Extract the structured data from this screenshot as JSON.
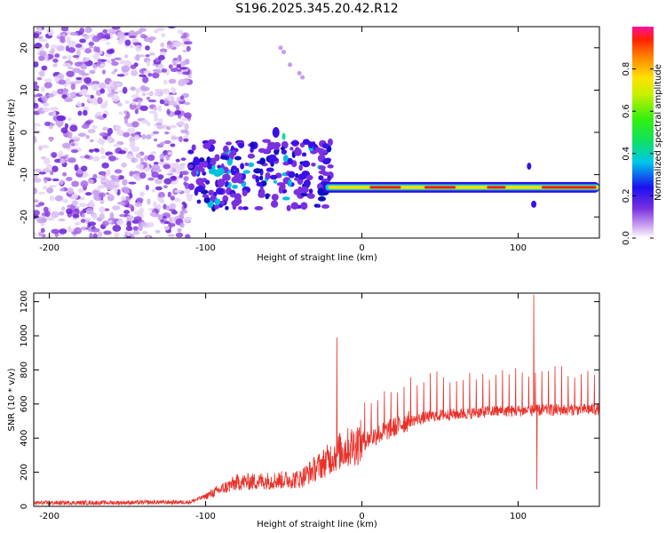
{
  "chart_data": [
    {
      "type": "heatmap",
      "title": "S196.2025.345.20.42.R12",
      "xlabel": "Height of straight line (km)",
      "ylabel": "Frequency (Hz)",
      "xlim": [
        -210,
        152
      ],
      "ylim": [
        -25,
        25
      ],
      "xticks": [
        -200,
        -100,
        0,
        100
      ],
      "yticks": [
        -20,
        -10,
        0,
        10,
        20
      ],
      "colorbar": {
        "label": "Normalized spectral amplitude",
        "range": [
          0,
          1
        ],
        "ticks": [
          0,
          0.2,
          0.4,
          0.6,
          0.8
        ]
      },
      "features": {
        "noise_region_x": [
          -210,
          -110
        ],
        "main_line_frequency": -13,
        "main_line_x": [
          -25,
          152
        ],
        "secondary_trace": [
          [
            -55,
            0
          ],
          [
            -45,
            -10
          ],
          [
            -35,
            -12
          ]
        ]
      }
    },
    {
      "type": "line",
      "xlabel": "Height of straight line (km)",
      "ylabel": "SNR (10 * v/v)",
      "xlim": [
        -210,
        152
      ],
      "ylim": [
        0,
        1250
      ],
      "xticks": [
        -200,
        -100,
        0,
        100
      ],
      "yticks": [
        0,
        200,
        400,
        600,
        800,
        1000,
        1200
      ],
      "color": "#e8312a",
      "envelope": [
        {
          "x": -210,
          "y": 20
        },
        {
          "x": -150,
          "y": 22
        },
        {
          "x": -110,
          "y": 25
        },
        {
          "x": -100,
          "y": 60
        },
        {
          "x": -80,
          "y": 140
        },
        {
          "x": -60,
          "y": 150
        },
        {
          "x": -40,
          "y": 160
        },
        {
          "x": -25,
          "y": 250
        },
        {
          "x": -15,
          "y": 320
        },
        {
          "x": -5,
          "y": 360
        },
        {
          "x": 0,
          "y": 380
        },
        {
          "x": 10,
          "y": 420
        },
        {
          "x": 20,
          "y": 460
        },
        {
          "x": 30,
          "y": 500
        },
        {
          "x": 45,
          "y": 530
        },
        {
          "x": 60,
          "y": 540
        },
        {
          "x": 80,
          "y": 555
        },
        {
          "x": 100,
          "y": 560
        },
        {
          "x": 120,
          "y": 565
        },
        {
          "x": 152,
          "y": 570
        }
      ],
      "spikes": [
        {
          "x": -16,
          "y": 990
        },
        {
          "x": 110,
          "y": 1240
        },
        {
          "x": 112,
          "y": 100
        }
      ]
    }
  ]
}
